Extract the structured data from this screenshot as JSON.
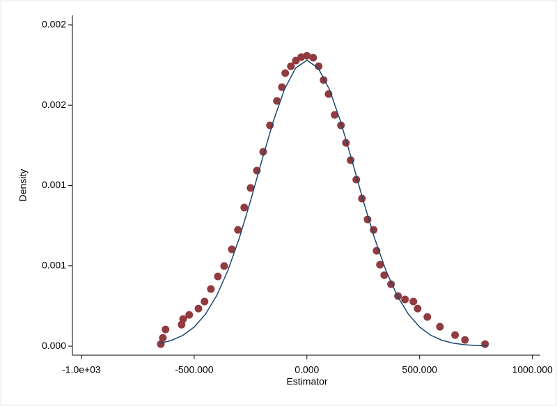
{
  "chart_data": {
    "type": "scatter",
    "x_label": "Estimator",
    "y_label": "Density",
    "xlim": [
      -1040,
      1035
    ],
    "ylim": [
      -5.6e-05,
      0.00206
    ],
    "xticks": [
      {
        "value": -1000,
        "label": "-1.0e+03"
      },
      {
        "value": -500,
        "label": "-500.000"
      },
      {
        "value": 0,
        "label": "0.000"
      },
      {
        "value": 500,
        "label": "500.000"
      },
      {
        "value": 1000,
        "label": "1000.000"
      }
    ],
    "yticks": [
      {
        "value": 0,
        "label": "0.000"
      },
      {
        "value": 0.0005,
        "label": "0.001"
      },
      0.001,
      {
        "value": 0.0015,
        "label": "0.002"
      },
      0.002
    ],
    "series": [
      {
        "type": "scatter",
        "color": "#8f3b40",
        "x": [
          -648,
          -639,
          -627,
          -556,
          -549,
          -522,
          -481,
          -454,
          -426,
          -395,
          -367,
          -333,
          -306,
          -278,
          -250,
          -222,
          -194,
          -164,
          -133,
          -111,
          -96,
          -71,
          -49,
          -25,
          0,
          28,
          52,
          74,
          96,
          123,
          151,
          173,
          194,
          219,
          244,
          269,
          296,
          309,
          324,
          343,
          373,
          404,
          435,
          472,
          491,
          534,
          590,
          657,
          701,
          790
        ],
        "values": [
          1.3e-05,
          5.2e-05,
          0.000104,
          0.000134,
          0.000169,
          0.000195,
          0.000234,
          0.000278,
          0.000356,
          0.000434,
          0.000499,
          0.000603,
          0.000724,
          0.000863,
          0.000985,
          0.001093,
          0.00121,
          0.001375,
          0.001527,
          0.001613,
          0.0017,
          0.001743,
          0.001778,
          0.0018,
          0.001808,
          0.001796,
          0.001743,
          0.001657,
          0.00157,
          0.00144,
          0.001375,
          0.001266,
          0.001158,
          0.001037,
          0.000919,
          0.000789,
          0.000724,
          0.000594,
          0.000507,
          0.000442,
          0.000386,
          0.000312,
          0.000291,
          0.000278,
          0.000234,
          0.000182,
          0.000121,
          6.9e-05,
          3.9e-05,
          1.3e-05
        ]
      },
      {
        "type": "line",
        "color": "#1a476f",
        "x": [
          -650,
          -600,
          -550,
          -500,
          -450,
          -400,
          -350,
          -300,
          -250,
          -200,
          -150,
          -100,
          -50,
          0,
          50,
          100,
          150,
          200,
          250,
          300,
          350,
          400,
          450,
          500,
          550,
          600,
          650,
          700,
          750,
          800
        ],
        "values": [
          1.84e-05,
          3.62e-05,
          6.75e-05,
          0.000119,
          0.000199,
          0.000315,
          0.000473,
          0.000672,
          0.000905,
          0.001155,
          0.001396,
          0.001598,
          0.001732,
          0.00178,
          0.001732,
          0.001598,
          0.001396,
          0.001155,
          0.000905,
          0.000672,
          0.000473,
          0.000315,
          0.000199,
          0.000119,
          6.75e-05,
          3.62e-05,
          1.84e-05,
          8.9e-06,
          4.1e-06,
          1.8e-06
        ]
      }
    ]
  }
}
